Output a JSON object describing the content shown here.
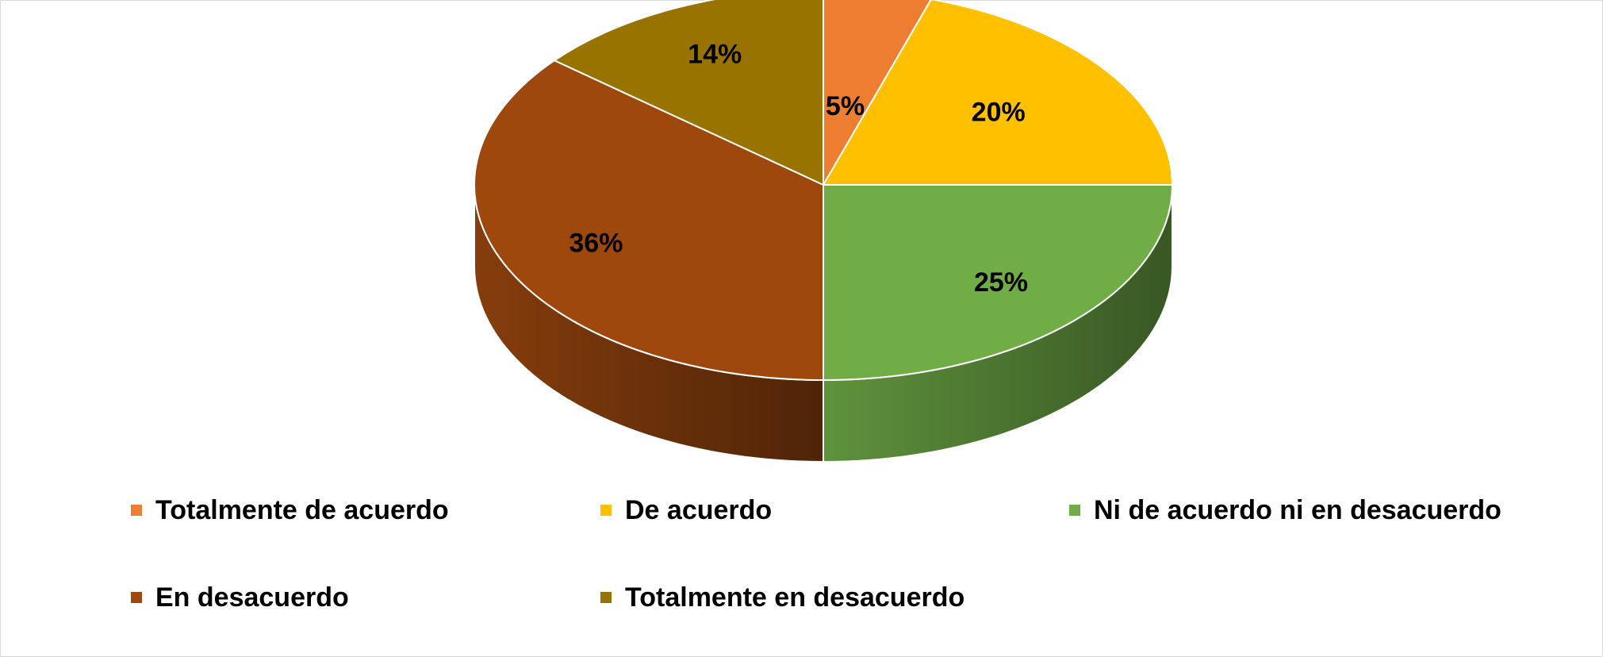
{
  "chart_data": {
    "type": "pie",
    "style": "3d",
    "categories": [
      "Totalmente de acuerdo",
      "De acuerdo",
      "Ni de acuerdo ni en desacuerdo",
      "En desacuerdo",
      "Totalmente en desacuerdo"
    ],
    "values": [
      5,
      20,
      25,
      36,
      14
    ],
    "labels": [
      "5%",
      "20%",
      "25%",
      "36%",
      "14%"
    ],
    "colors": [
      "#ED7D31",
      "#FFC000",
      "#70AD47",
      "#9E480E",
      "#997300"
    ],
    "legend_placement": "bottom",
    "legend": [
      {
        "label": "Totalmente de acuerdo",
        "color": "#ED7D31"
      },
      {
        "label": "De acuerdo",
        "color": "#FFC000"
      },
      {
        "label": "Ni de acuerdo ni en desacuerdo",
        "color": "#70AD47"
      },
      {
        "label": "En desacuerdo",
        "color": "#9E480E"
      },
      {
        "label": "Totalmente en desacuerdo",
        "color": "#997300"
      }
    ]
  }
}
